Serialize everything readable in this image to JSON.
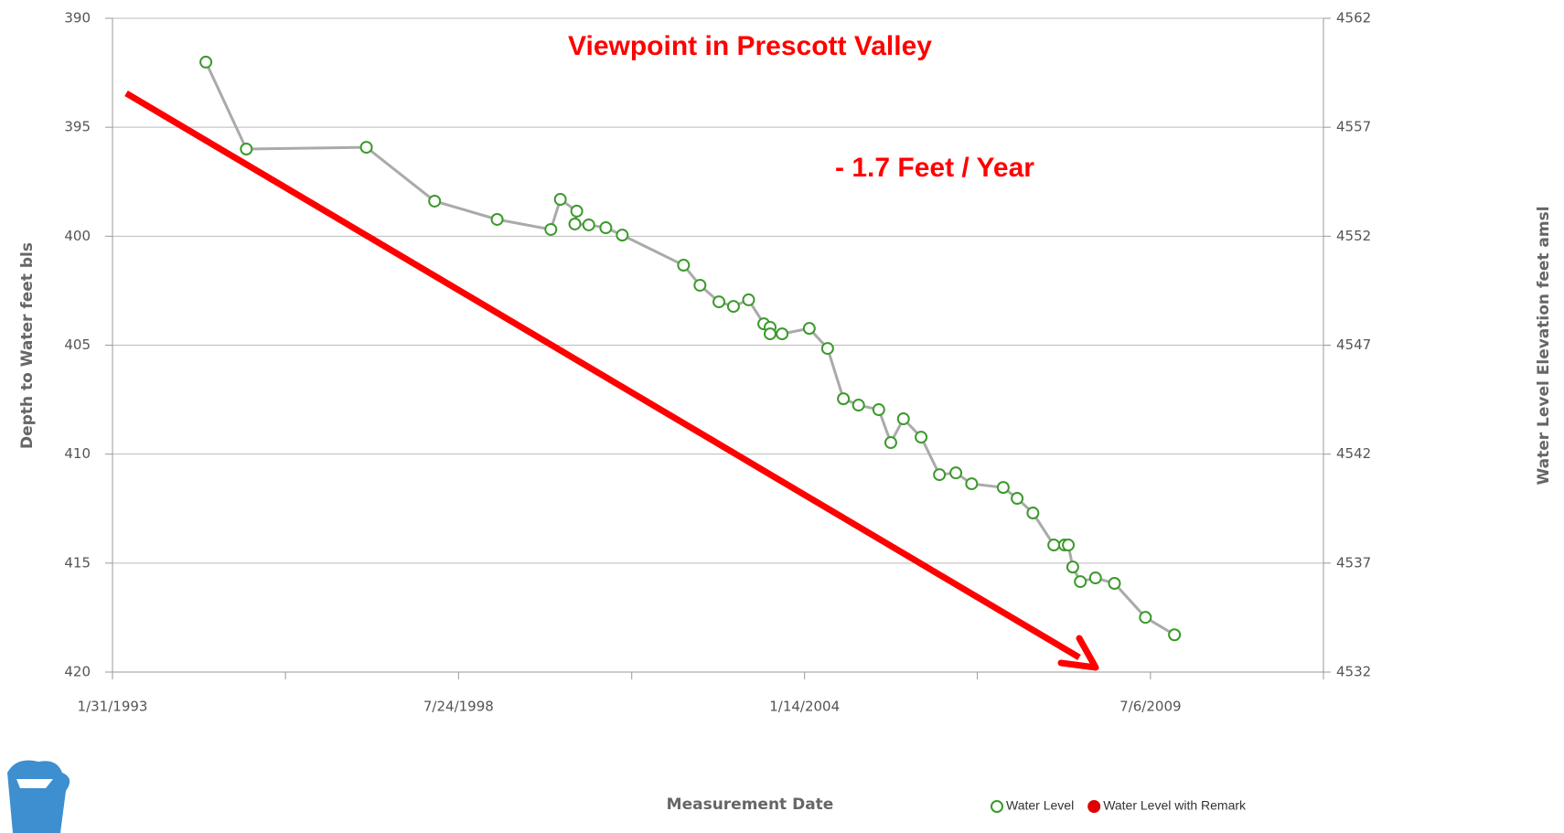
{
  "chart_data": {
    "type": "line",
    "title": "Viewpoint in Prescott Valley",
    "annotation": "- 1.7 Feet / Year",
    "xlabel": "Measurement Date",
    "ylabel": "Depth to Water feet bls",
    "y2label": "Water Level Elevation feet amsl",
    "xlim": [
      1993.082,
      2012.248
    ],
    "xticks": [
      {
        "value": 1993.082,
        "label": "1/31/1993"
      },
      {
        "value": 1998.559,
        "label": "7/24/1998"
      },
      {
        "value": 2004.036,
        "label": "1/14/2004"
      },
      {
        "value": 2009.51,
        "label": "7/6/2009"
      }
    ],
    "xticks_minor": [
      1995.82,
      2001.3,
      2006.77,
      2012.248
    ],
    "ylim": [
      390,
      420
    ],
    "yticks": [
      390,
      395,
      400,
      405,
      410,
      415,
      420
    ],
    "y2lim": [
      4562,
      4532
    ],
    "y2ticks": [
      4562,
      4557,
      4552,
      4547,
      4542,
      4537,
      4532
    ],
    "grid": true,
    "line_color": "#aaaaaa",
    "series": [
      {
        "name": "Water Level",
        "color": "#3a9a2a",
        "x": [
          1994.56,
          1995.2,
          1997.1,
          1998.18,
          1999.17,
          2000.02,
          2000.17,
          2000.43,
          2000.4,
          2000.62,
          2000.89,
          2001.15,
          2002.12,
          2002.38,
          2002.68,
          2002.91,
          2003.15,
          2003.39,
          2003.49,
          2003.49,
          2003.68,
          2004.11,
          2004.4,
          2004.65,
          2004.89,
          2005.21,
          2005.4,
          2005.6,
          2005.88,
          2006.17,
          2006.43,
          2006.68,
          2007.18,
          2007.4,
          2007.65,
          2007.98,
          2008.15,
          2008.21,
          2008.28,
          2008.4,
          2008.64,
          2008.94,
          2009.43,
          2009.89
        ],
        "values": [
          392.01,
          396.0,
          395.92,
          398.39,
          399.23,
          399.69,
          398.31,
          398.85,
          399.44,
          399.48,
          399.61,
          399.95,
          401.33,
          402.25,
          403.01,
          403.22,
          402.92,
          404.02,
          404.18,
          404.48,
          404.48,
          404.23,
          405.15,
          407.46,
          407.75,
          407.96,
          409.47,
          408.38,
          409.22,
          410.94,
          410.86,
          411.36,
          411.53,
          412.03,
          412.7,
          414.17,
          414.17,
          414.17,
          415.18,
          415.85,
          415.68,
          415.93,
          417.49,
          418.29
        ]
      }
    ],
    "legend": [
      {
        "name": "Water Level",
        "color": "#3a9a2a",
        "marker": "open"
      },
      {
        "name": "Water Level with Remark",
        "color": "#e00000",
        "marker": "filled"
      }
    ],
    "legend_position": "bottom-right"
  }
}
